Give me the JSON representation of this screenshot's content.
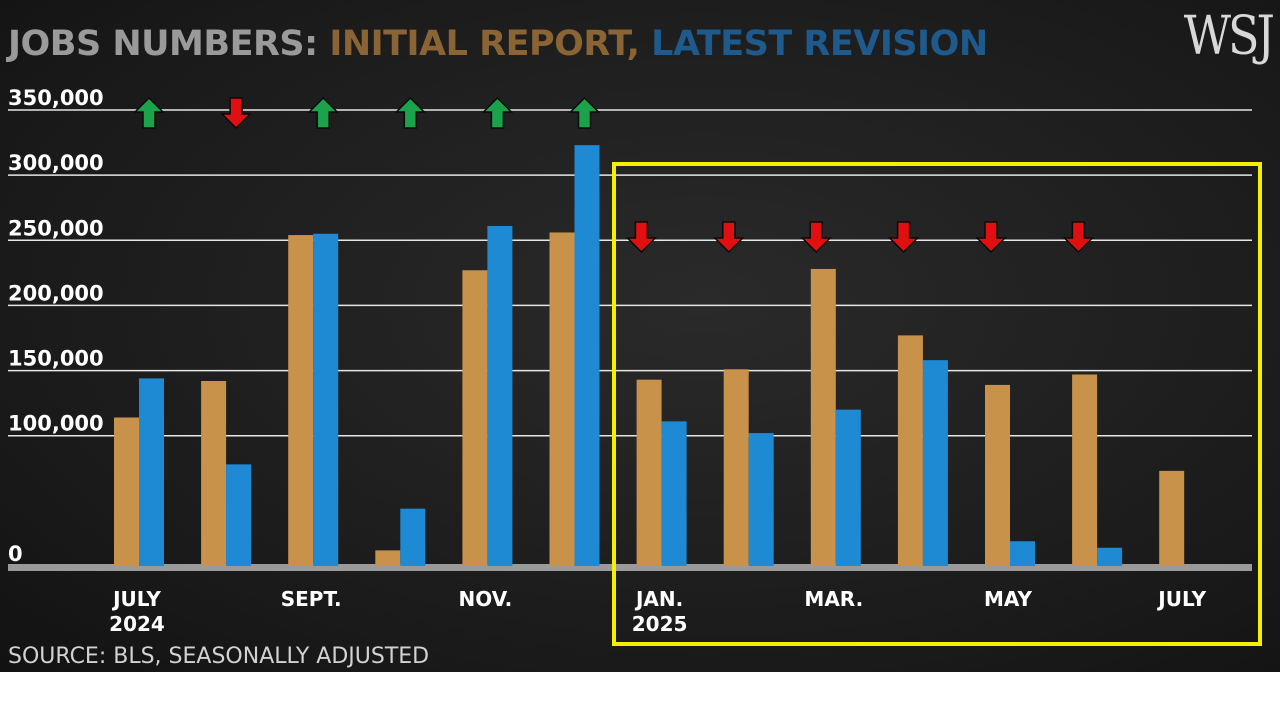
{
  "title": {
    "part1": "JOBS NUMBERS:",
    "part2": "INITIAL REPORT,",
    "part3": "LATEST REVISION"
  },
  "logo": "WSJ",
  "source": "SOURCE: BLS, SEASONALLY ADJUSTED",
  "colors": {
    "initial": "#c8924a",
    "revision": "#1f8ad4",
    "up_arrow": "#1aa34a",
    "down_arrow": "#e01010",
    "highlight_box": "#f5f000"
  },
  "chart_data": {
    "type": "bar",
    "title": "JOBS NUMBERS: INITIAL REPORT, LATEST REVISION",
    "ylim": [
      0,
      350000
    ],
    "yticks": [
      0,
      100000,
      150000,
      200000,
      250000,
      300000,
      350000
    ],
    "ytick_labels": [
      "0",
      "100,000",
      "150,000",
      "200,000",
      "250,000",
      "300,000",
      "350,000"
    ],
    "grid": true,
    "months": [
      "Jul 2024",
      "Aug 2024",
      "Sep 2024",
      "Oct 2024",
      "Nov 2024",
      "Dec 2024",
      "Jan 2025",
      "Feb 2025",
      "Mar 2025",
      "Apr 2025",
      "May 2025",
      "Jun 2025",
      "Jul 2025"
    ],
    "x_tick_labels": [
      {
        "month_index": 0,
        "lines": [
          "JULY",
          "2024"
        ]
      },
      {
        "month_index": 2,
        "lines": [
          "SEPT."
        ]
      },
      {
        "month_index": 4,
        "lines": [
          "NOV."
        ]
      },
      {
        "month_index": 6,
        "lines": [
          "JAN.",
          "2025"
        ]
      },
      {
        "month_index": 8,
        "lines": [
          "MAR."
        ]
      },
      {
        "month_index": 10,
        "lines": [
          "MAY"
        ]
      },
      {
        "month_index": 12,
        "lines": [
          "JULY"
        ]
      }
    ],
    "series": [
      {
        "name": "INITIAL REPORT",
        "values": [
          114000,
          142000,
          254000,
          12000,
          227000,
          256000,
          143000,
          151000,
          228000,
          177000,
          139000,
          147000,
          73000
        ]
      },
      {
        "name": "LATEST REVISION",
        "values": [
          144000,
          78000,
          255000,
          44000,
          261000,
          323000,
          111000,
          102000,
          120000,
          158000,
          19000,
          14000,
          null
        ]
      }
    ],
    "revision_direction": [
      "up",
      "down",
      "up",
      "up",
      "up",
      "up",
      "down",
      "down",
      "down",
      "down",
      "down",
      "down",
      null
    ],
    "highlight": {
      "from_month_index": 6,
      "to_month_index": 12
    }
  }
}
